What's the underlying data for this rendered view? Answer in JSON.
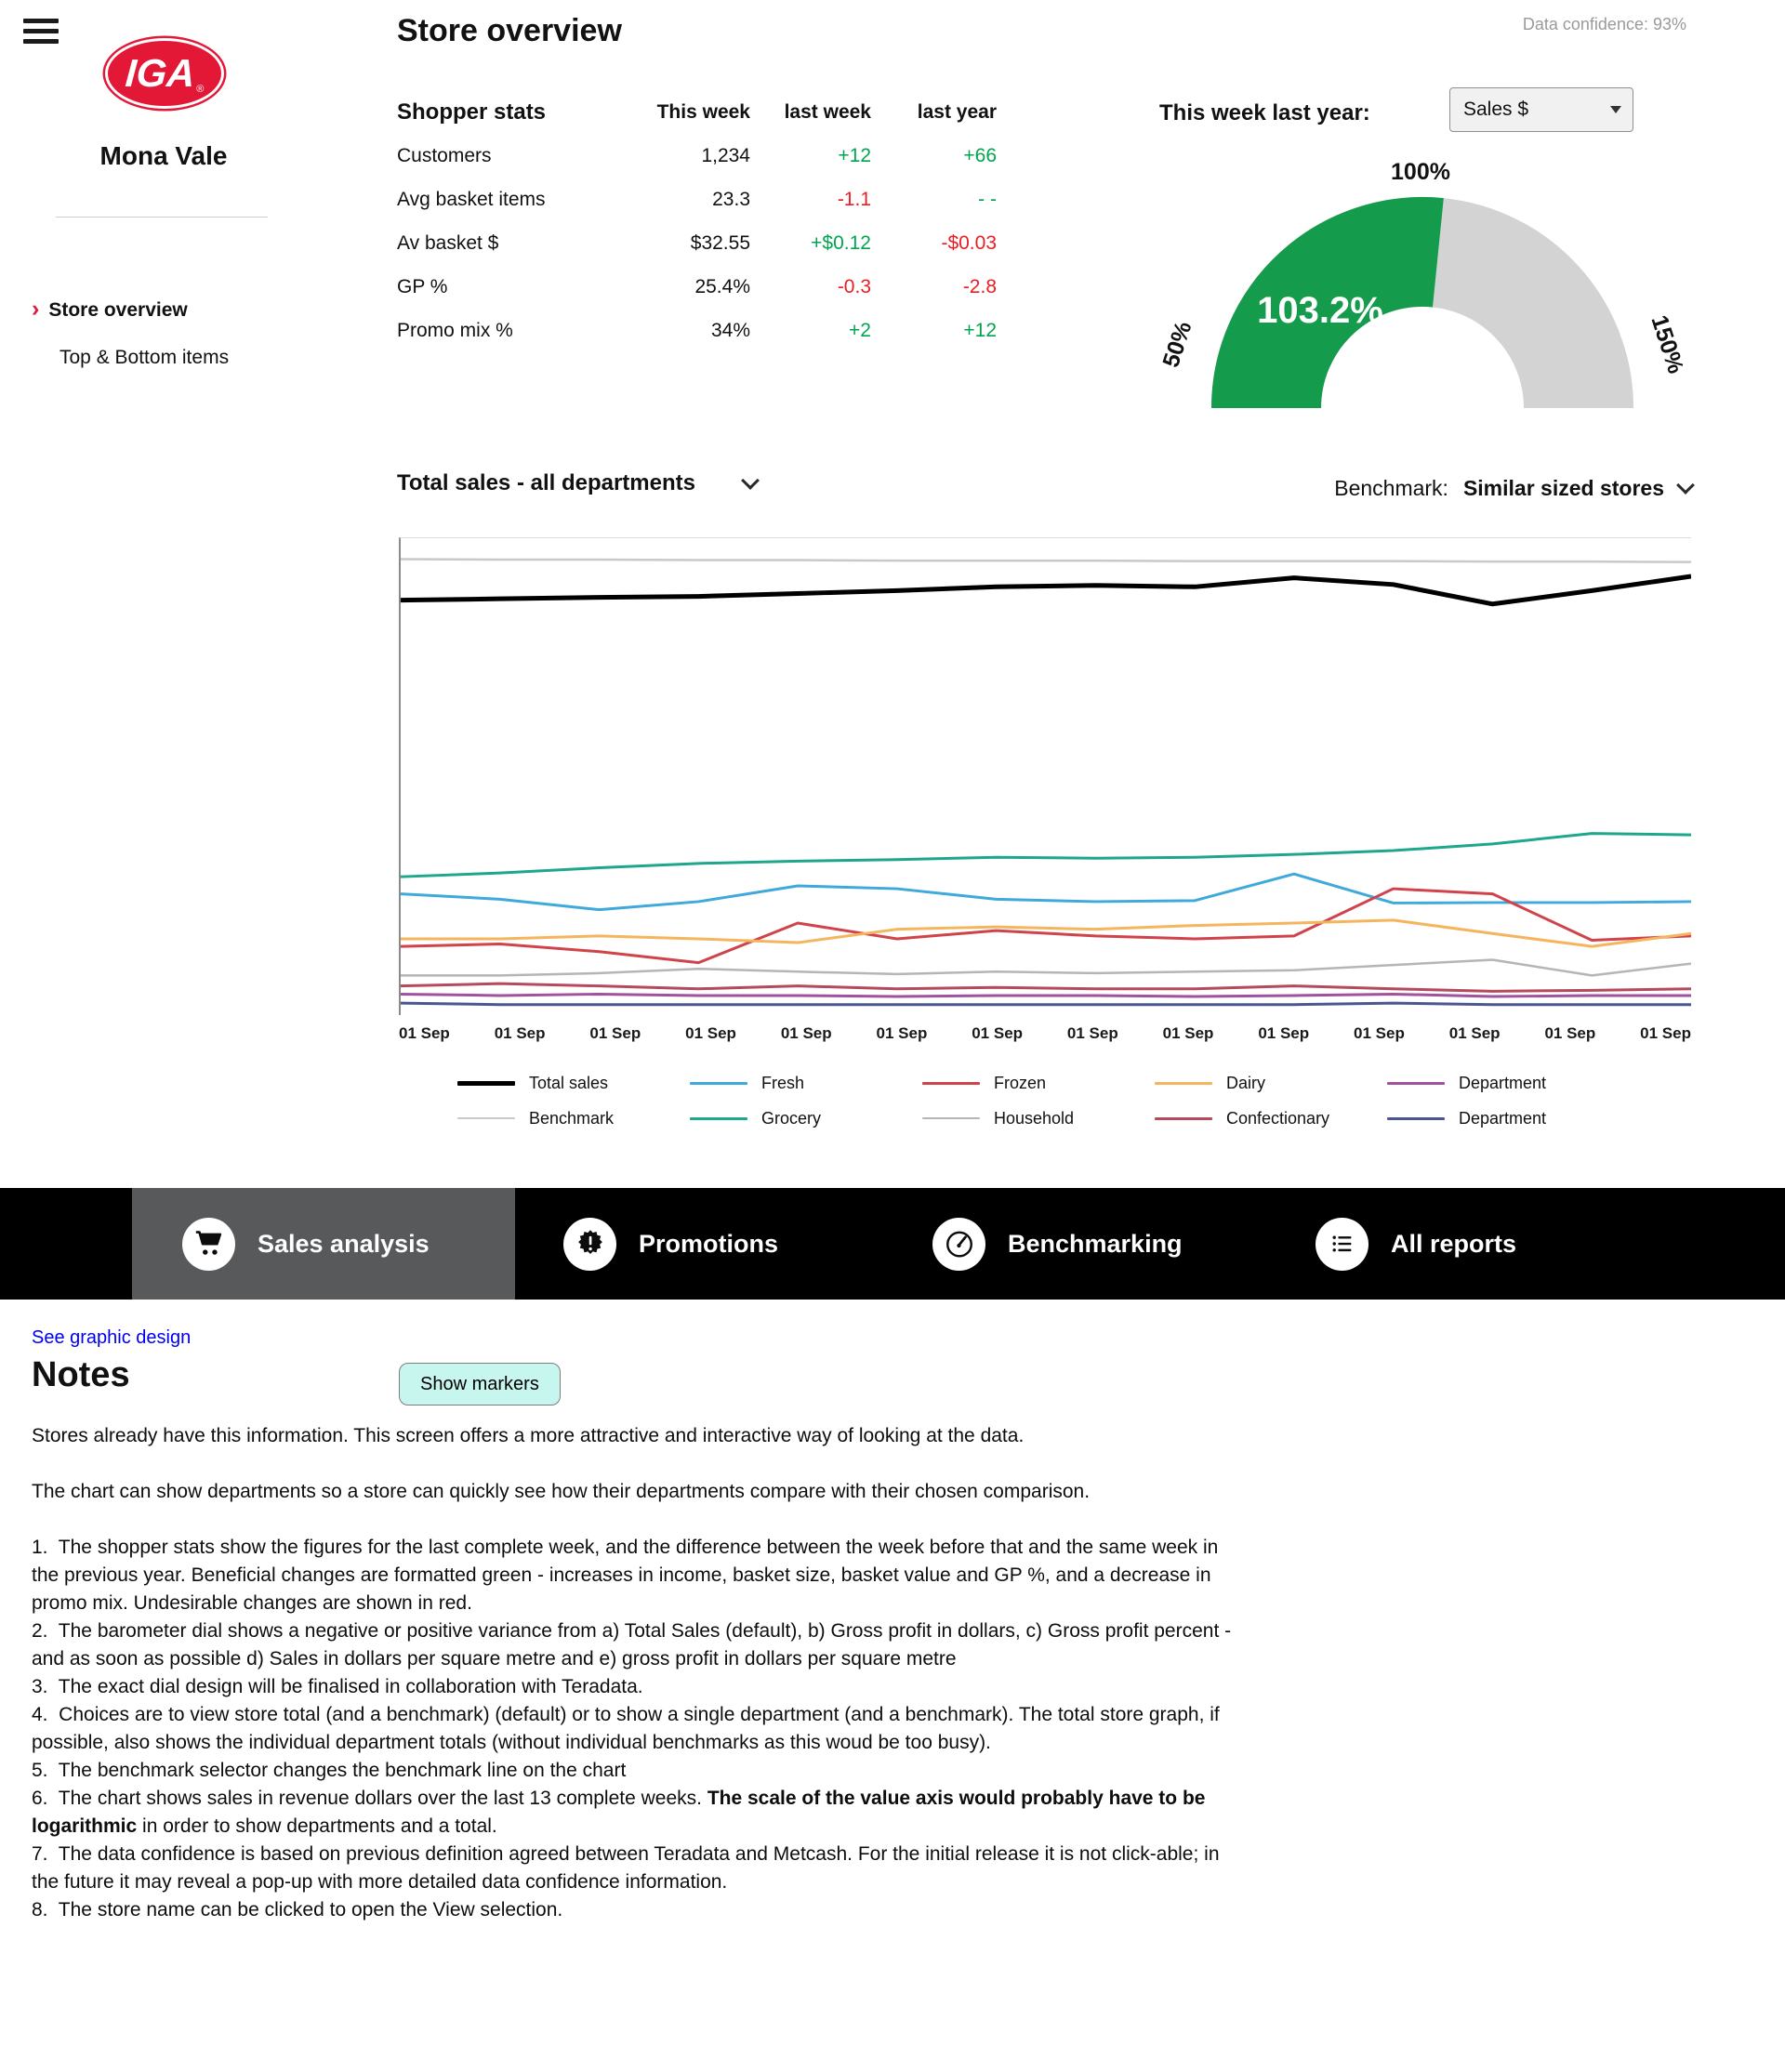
{
  "brand": {
    "logo": "IGA",
    "reg": "®",
    "store_name": "Mona Vale",
    "red": "#e31837"
  },
  "header": {
    "title": "Store overview",
    "data_confidence": "Data confidence: 93%"
  },
  "sidebar": {
    "items": [
      {
        "label": "Store overview",
        "active": true
      },
      {
        "label": "Top & Bottom items",
        "active": false
      }
    ]
  },
  "shopper_stats": {
    "title": "Shopper stats",
    "columns": [
      "This week",
      "last week",
      "last year"
    ],
    "colors": {
      "green": "#00a550",
      "red": "#ec1c24"
    },
    "rows": [
      {
        "label": "Customers",
        "this_week": "1,234",
        "last_week": {
          "text": "+12",
          "color": "green"
        },
        "last_year": {
          "text": "+66",
          "color": "green"
        }
      },
      {
        "label": "Avg basket items",
        "this_week": "23.3",
        "last_week": {
          "text": "-1.1",
          "color": "red"
        },
        "last_year": {
          "text": "- -",
          "color": "green"
        }
      },
      {
        "label": "Av basket $",
        "this_week": "$32.55",
        "last_week": {
          "text": "+$0.12",
          "color": "green"
        },
        "last_year": {
          "text": "-$0.03",
          "color": "red"
        }
      },
      {
        "label": "GP %",
        "this_week": "25.4%",
        "last_week": {
          "text": "-0.3",
          "color": "red"
        },
        "last_year": {
          "text": "-2.8",
          "color": "red"
        }
      },
      {
        "label": "Promo mix %",
        "this_week": "34%",
        "last_week": {
          "text": "+2",
          "color": "green"
        },
        "last_year": {
          "text": "+12",
          "color": "green"
        }
      }
    ]
  },
  "gauge": {
    "label": "This week last year:",
    "selector_value": "Sales $",
    "value_label": "103.2%",
    "value_pct": 103.2,
    "range_min": 50,
    "range_max": 150,
    "min_label": "50%",
    "mid_label": "100%",
    "max_label": "150%",
    "fill_color": "#149c4c",
    "track_color": "#d3d3d3"
  },
  "chart_section": {
    "title": "Total sales - all departments",
    "benchmark_label": "Benchmark:",
    "benchmark_value": "Similar sized stores"
  },
  "chart_data": {
    "type": "line",
    "title": "Total sales - all departments",
    "x_labels": [
      "01 Sep",
      "01 Sep",
      "01 Sep",
      "01 Sep",
      "01 Sep",
      "01 Sep",
      "01 Sep",
      "01 Sep",
      "01 Sep",
      "01 Sep",
      "01 Sep",
      "01 Sep",
      "01 Sep",
      "01 Sep"
    ],
    "y_axis": "Sales revenue $ (axis unlabeled in mockup)",
    "ylim": [
      0,
      100
    ],
    "legend_position": "bottom",
    "series": [
      {
        "name": "Total sales",
        "color": "#000000",
        "lw": 5,
        "values": [
          87.0,
          87.3,
          87.6,
          87.8,
          88.4,
          89.0,
          89.8,
          90.1,
          89.8,
          91.7,
          90.3,
          86.2,
          89.0,
          92.0
        ]
      },
      {
        "name": "Benchmark",
        "color": "#c9c9c9",
        "lw": 2.5,
        "values": [
          95.6,
          95.5,
          95.5,
          95.4,
          95.4,
          95.3,
          95.3,
          95.3,
          95.2,
          95.2,
          95.2,
          95.1,
          95.1,
          95.0
        ]
      },
      {
        "name": "Fresh",
        "color": "#3fa9dc",
        "lw": 3,
        "values": [
          25.4,
          24.3,
          22.1,
          23.8,
          27.1,
          26.5,
          24.3,
          23.8,
          24.0,
          29.6,
          23.5,
          23.6,
          23.6,
          23.8
        ]
      },
      {
        "name": "Grocery",
        "color": "#1ea78d",
        "lw": 3,
        "values": [
          29.0,
          29.8,
          30.9,
          31.8,
          32.3,
          32.6,
          33.1,
          32.9,
          33.1,
          33.7,
          34.5,
          35.9,
          38.1,
          37.8
        ]
      },
      {
        "name": "Frozen",
        "color": "#d0434a",
        "lw": 3,
        "values": [
          14.4,
          14.9,
          13.3,
          11.0,
          19.3,
          16.0,
          17.7,
          16.6,
          16.0,
          16.6,
          26.5,
          25.4,
          15.7,
          16.6
        ]
      },
      {
        "name": "Household",
        "color": "#b5b5b5",
        "lw": 2.5,
        "values": [
          8.3,
          8.3,
          8.8,
          9.7,
          9.1,
          8.6,
          9.1,
          8.8,
          9.1,
          9.4,
          10.5,
          11.6,
          8.3,
          10.8
        ]
      },
      {
        "name": "Dairy",
        "color": "#f5b55e",
        "lw": 3,
        "values": [
          16.0,
          16.0,
          16.6,
          16.0,
          15.2,
          18.0,
          18.5,
          18.0,
          18.8,
          19.3,
          19.9,
          17.1,
          14.4,
          17.1
        ]
      },
      {
        "name": "Confectionary",
        "color": "#b34a5e",
        "lw": 3,
        "values": [
          6.1,
          6.6,
          6.1,
          5.5,
          6.1,
          5.5,
          5.8,
          5.5,
          5.5,
          6.1,
          5.5,
          5.0,
          5.2,
          5.5
        ]
      },
      {
        "name": "Department",
        "color": "#a0529f",
        "lw": 3,
        "values": [
          4.4,
          4.1,
          4.4,
          4.1,
          4.1,
          3.9,
          4.1,
          4.1,
          3.9,
          4.1,
          4.4,
          3.9,
          4.1,
          4.1
        ]
      },
      {
        "name": "Department",
        "color": "#4a5693",
        "lw": 3,
        "values": [
          2.5,
          2.2,
          2.2,
          2.2,
          2.2,
          2.2,
          2.2,
          2.2,
          2.2,
          2.2,
          2.5,
          2.2,
          2.2,
          2.2
        ]
      }
    ]
  },
  "navbar": {
    "items": [
      {
        "label": "Sales analysis",
        "icon": "cart-icon",
        "active": true
      },
      {
        "label": "Promotions",
        "icon": "badge-icon",
        "active": false
      },
      {
        "label": "Benchmarking",
        "icon": "gauge-icon",
        "active": false
      },
      {
        "label": "All reports",
        "icon": "list-icon",
        "active": false
      }
    ]
  },
  "footer": {
    "link": "See graphic design",
    "notes_title": "Notes",
    "show_markers_button": "Show markers",
    "paragraphs": [
      {
        "gap": true,
        "segments": [
          {
            "t": "Stores already have this information. This screen offers a more attractive and interactive way of looking at the data."
          }
        ]
      },
      {
        "gap": true,
        "segments": [
          {
            "t": "The chart can show departments so a store can quickly see how their departments compare with their chosen comparison."
          }
        ]
      },
      {
        "gap": false,
        "segments": [
          {
            "t": "1.  The shopper stats show the figures for the last complete week, and the difference between the week before that and the same week in the previous year. Beneficial changes are formatted green - increases in income, basket size, basket value and GP %, and a decrease in promo mix. Undesirable changes are shown in red."
          }
        ]
      },
      {
        "gap": false,
        "segments": [
          {
            "t": "2.  The barometer dial shows a negative or positive variance from a) Total Sales (default), b) Gross profit in dollars, c) Gross profit percent - and as soon as possible d) Sales in dollars per square metre and e) gross profit in dollars per square metre"
          }
        ]
      },
      {
        "gap": false,
        "segments": [
          {
            "t": "3.  The exact dial design will be finalised in collaboration with Teradata."
          }
        ]
      },
      {
        "gap": false,
        "segments": [
          {
            "t": "4.  Choices are to view store total (and a benchmark) (default) or to show a single department (and a benchmark). The total store graph, if possible, also shows the individual department totals (without individual benchmarks as this woud be too busy)."
          }
        ]
      },
      {
        "gap": false,
        "segments": [
          {
            "t": "5.  The benchmark selector changes the benchmark line on the chart"
          }
        ]
      },
      {
        "gap": false,
        "segments": [
          {
            "t": "6.  The chart shows sales in revenue dollars over the last 13 complete weeks. "
          },
          {
            "t": "The scale of the value axis would probably have to be logarithmic",
            "b": true
          },
          {
            "t": " in order to show departments and a total."
          }
        ]
      },
      {
        "gap": false,
        "segments": [
          {
            "t": "7.  The data confidence is based on previous definition agreed between Teradata and Metcash. For the initial release it is not click-able; in the future it may reveal a pop-up with more detailed data confidence information."
          }
        ]
      },
      {
        "gap": false,
        "segments": [
          {
            "t": "8.  The store name can be clicked to open the View selection."
          }
        ]
      }
    ]
  }
}
